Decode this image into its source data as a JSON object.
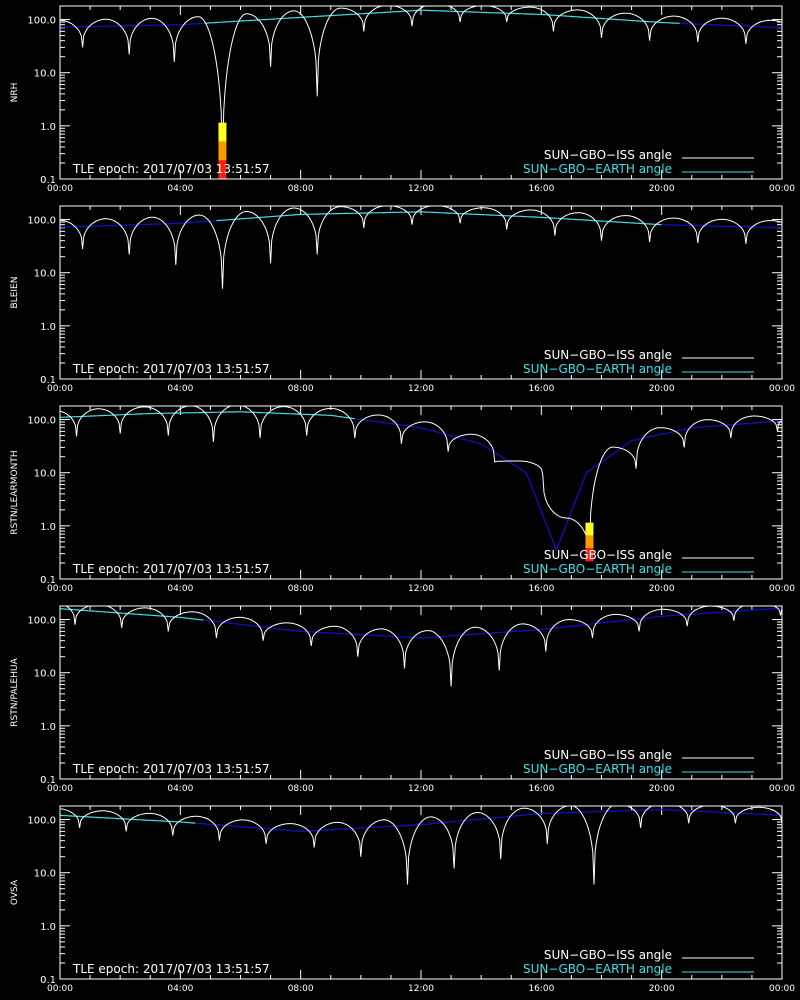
{
  "figure": {
    "background": "#000000",
    "axis_color": "#ffffff",
    "iss_color": "#ffffff",
    "earth_color_above_horizon": "#40e0e8",
    "earth_color_below_horizon": "#1010d0",
    "obstruction_colors": [
      "#ffff20",
      "#ff9900",
      "#ff2010"
    ]
  },
  "chart_data": [
    {
      "type": "line",
      "station": "NRH",
      "annotation": "TLE epoch: 2017/07/03 13:51:57",
      "x_ticks": [
        "00:00",
        "04:00",
        "08:00",
        "12:00",
        "16:00",
        "20:00",
        "00:00"
      ],
      "y_ticks": [
        "0.1",
        "1.0",
        "10.0",
        "100.0"
      ],
      "xlim": [
        0,
        24
      ],
      "ylim": [
        0.1,
        180
      ],
      "y_scale": "log",
      "legend": {
        "placement": "bottom-right",
        "entries": [
          "SUN−GBO−ISS angle",
          "SUN−GBO−EARTH angle"
        ]
      },
      "earth_angle": {
        "x": [
          0,
          4,
          8,
          12,
          16,
          20,
          24
        ],
        "y": [
          72,
          80,
          110,
          150,
          125,
          88,
          70
        ],
        "above_horizon_range": [
          4.8,
          20.6
        ]
      },
      "iss_minima": [
        {
          "t": 0.75,
          "v": 30
        },
        {
          "t": 2.3,
          "v": 22
        },
        {
          "t": 3.8,
          "v": 16
        },
        {
          "t": 5.4,
          "v": 0.1
        },
        {
          "t": 7.0,
          "v": 13
        },
        {
          "t": 8.55,
          "v": 3.6
        },
        {
          "t": 10.1,
          "v": 60
        },
        {
          "t": 11.7,
          "v": 75
        },
        {
          "t": 13.3,
          "v": 90
        },
        {
          "t": 14.85,
          "v": 90
        },
        {
          "t": 16.4,
          "v": 60
        },
        {
          "t": 18.0,
          "v": 45
        },
        {
          "t": 19.6,
          "v": 40
        },
        {
          "t": 21.2,
          "v": 38
        },
        {
          "t": 22.8,
          "v": 35
        }
      ],
      "obstructions": [
        {
          "t": 5.4,
          "y_from": 0.1,
          "y_to": 1.15
        }
      ]
    },
    {
      "type": "line",
      "station": "BLEIEN",
      "annotation": "TLE epoch: 2017/07/03 13:51:57",
      "x_ticks": [
        "00:00",
        "04:00",
        "08:00",
        "12:00",
        "16:00",
        "20:00",
        "00:00"
      ],
      "y_ticks": [
        "0.1",
        "1.0",
        "10.0",
        "100.0"
      ],
      "xlim": [
        0,
        24
      ],
      "ylim": [
        0.1,
        180
      ],
      "y_scale": "log",
      "legend": {
        "placement": "bottom-right",
        "entries": [
          "SUN−GBO−ISS angle",
          "SUN−GBO−EARTH angle"
        ]
      },
      "earth_angle": {
        "x": [
          0,
          4,
          8,
          12,
          16,
          20,
          24
        ],
        "y": [
          72,
          85,
          125,
          140,
          110,
          80,
          70
        ],
        "above_horizon_range": [
          5.2,
          20.0
        ]
      },
      "iss_minima": [
        {
          "t": 0.75,
          "v": 28
        },
        {
          "t": 2.3,
          "v": 22
        },
        {
          "t": 3.85,
          "v": 14
        },
        {
          "t": 5.4,
          "v": 5
        },
        {
          "t": 7.0,
          "v": 15
        },
        {
          "t": 8.55,
          "v": 22
        },
        {
          "t": 10.1,
          "v": 70
        },
        {
          "t": 11.7,
          "v": 80
        },
        {
          "t": 13.3,
          "v": 85
        },
        {
          "t": 14.85,
          "v": 65
        },
        {
          "t": 16.45,
          "v": 50
        },
        {
          "t": 18.0,
          "v": 40
        },
        {
          "t": 19.6,
          "v": 38
        },
        {
          "t": 21.2,
          "v": 36
        },
        {
          "t": 22.8,
          "v": 35
        }
      ],
      "obstructions": []
    },
    {
      "type": "line",
      "station": "RSTN/LEARMONTH",
      "annotation": "TLE epoch: 2017/07/03 13:51:57",
      "x_ticks": [
        "00:00",
        "04:00",
        "08:00",
        "12:00",
        "16:00",
        "20:00",
        "00:00"
      ],
      "y_ticks": [
        "0.1",
        "1.0",
        "10.0",
        "100.0"
      ],
      "xlim": [
        0,
        24
      ],
      "ylim": [
        0.1,
        180
      ],
      "y_scale": "log",
      "legend": {
        "placement": "bottom-right",
        "entries": [
          "SUN−GBO−ISS angle",
          "SUN−GBO−EARTH angle"
        ]
      },
      "earth_angle": {
        "x": [
          0,
          3,
          6,
          9,
          12,
          14,
          15.5,
          16.5,
          17.5,
          19,
          21,
          24
        ],
        "y": [
          110,
          130,
          140,
          120,
          70,
          35,
          10,
          0.35,
          10,
          40,
          70,
          95
        ],
        "above_horizon_range": [
          -1,
          9.8
        ]
      },
      "iss_minima": [
        {
          "t": 0.55,
          "v": 48
        },
        {
          "t": 2.0,
          "v": 55
        },
        {
          "t": 3.6,
          "v": 50
        },
        {
          "t": 5.1,
          "v": 38
        },
        {
          "t": 6.65,
          "v": 45
        },
        {
          "t": 8.2,
          "v": 50
        },
        {
          "t": 9.8,
          "v": 45
        },
        {
          "t": 11.35,
          "v": 35
        },
        {
          "t": 12.9,
          "v": 25
        },
        {
          "t": 14.45,
          "v": 16
        },
        {
          "t": 16.05,
          "v": 9
        },
        {
          "t": 17.6,
          "v": 0.22
        },
        {
          "t": 19.15,
          "v": 12
        },
        {
          "t": 20.75,
          "v": 30
        },
        {
          "t": 22.3,
          "v": 45
        },
        {
          "t": 23.85,
          "v": 60
        }
      ],
      "obstructions": [
        {
          "t": 17.6,
          "y_from": 0.22,
          "y_to": 1.15
        }
      ]
    },
    {
      "type": "line",
      "station": "RSTN/PALEHUA",
      "annotation": "TLE epoch: 2017/07/03 13:51:57",
      "x_ticks": [
        "00:00",
        "04:00",
        "08:00",
        "12:00",
        "16:00",
        "20:00",
        "00:00"
      ],
      "y_ticks": [
        "0.1",
        "1.0",
        "10.0",
        "100.0"
      ],
      "xlim": [
        0,
        24
      ],
      "ylim": [
        0.1,
        180
      ],
      "y_scale": "log",
      "legend": {
        "placement": "bottom-right",
        "entries": [
          "SUN−GBO−ISS angle",
          "SUN−GBO−EARTH angle"
        ]
      },
      "earth_angle": {
        "x": [
          0,
          4,
          8,
          12,
          16,
          20,
          24
        ],
        "y": [
          160,
          110,
          60,
          45,
          65,
          115,
          165
        ],
        "above_horizon_range": [
          -1,
          4.8
        ]
      },
      "iss_minima": [
        {
          "t": 0.5,
          "v": 80
        },
        {
          "t": 2.05,
          "v": 70
        },
        {
          "t": 3.6,
          "v": 60
        },
        {
          "t": 5.2,
          "v": 45
        },
        {
          "t": 6.75,
          "v": 40
        },
        {
          "t": 8.35,
          "v": 32
        },
        {
          "t": 9.9,
          "v": 20
        },
        {
          "t": 11.45,
          "v": 12
        },
        {
          "t": 13.0,
          "v": 5.5
        },
        {
          "t": 14.6,
          "v": 11
        },
        {
          "t": 16.15,
          "v": 25
        },
        {
          "t": 17.7,
          "v": 45
        },
        {
          "t": 19.25,
          "v": 60
        },
        {
          "t": 20.85,
          "v": 75
        },
        {
          "t": 22.4,
          "v": 95
        },
        {
          "t": 23.95,
          "v": 120
        }
      ],
      "obstructions": []
    },
    {
      "type": "line",
      "station": "OVSA",
      "annotation": "TLE epoch: 2017/07/03 13:51:57",
      "x_ticks": [
        "00:00",
        "04:00",
        "08:00",
        "12:00",
        "16:00",
        "20:00",
        "00:00"
      ],
      "y_ticks": [
        "0.1",
        "1.0",
        "10.0",
        "100.0"
      ],
      "xlim": [
        0,
        24
      ],
      "ylim": [
        0.1,
        180
      ],
      "y_scale": "log",
      "legend": {
        "placement": "bottom-right",
        "entries": [
          "SUN−GBO−ISS angle",
          "SUN−GBO−EARTH angle"
        ]
      },
      "earth_angle": {
        "x": [
          0,
          4,
          8,
          12,
          16,
          20,
          24
        ],
        "y": [
          120,
          90,
          60,
          80,
          130,
          155,
          120
        ],
        "above_horizon_range": [
          -1,
          4.5
        ]
      },
      "iss_minima": [
        {
          "t": 0.65,
          "v": 70
        },
        {
          "t": 2.2,
          "v": 60
        },
        {
          "t": 3.75,
          "v": 50
        },
        {
          "t": 5.3,
          "v": 40
        },
        {
          "t": 6.85,
          "v": 35
        },
        {
          "t": 8.45,
          "v": 30
        },
        {
          "t": 10.0,
          "v": 20
        },
        {
          "t": 11.55,
          "v": 6
        },
        {
          "t": 13.1,
          "v": 12
        },
        {
          "t": 14.65,
          "v": 18
        },
        {
          "t": 16.2,
          "v": 35
        },
        {
          "t": 17.75,
          "v": 6
        },
        {
          "t": 19.3,
          "v": 70
        },
        {
          "t": 20.9,
          "v": 85
        },
        {
          "t": 22.45,
          "v": 85
        }
      ],
      "obstructions": []
    }
  ]
}
